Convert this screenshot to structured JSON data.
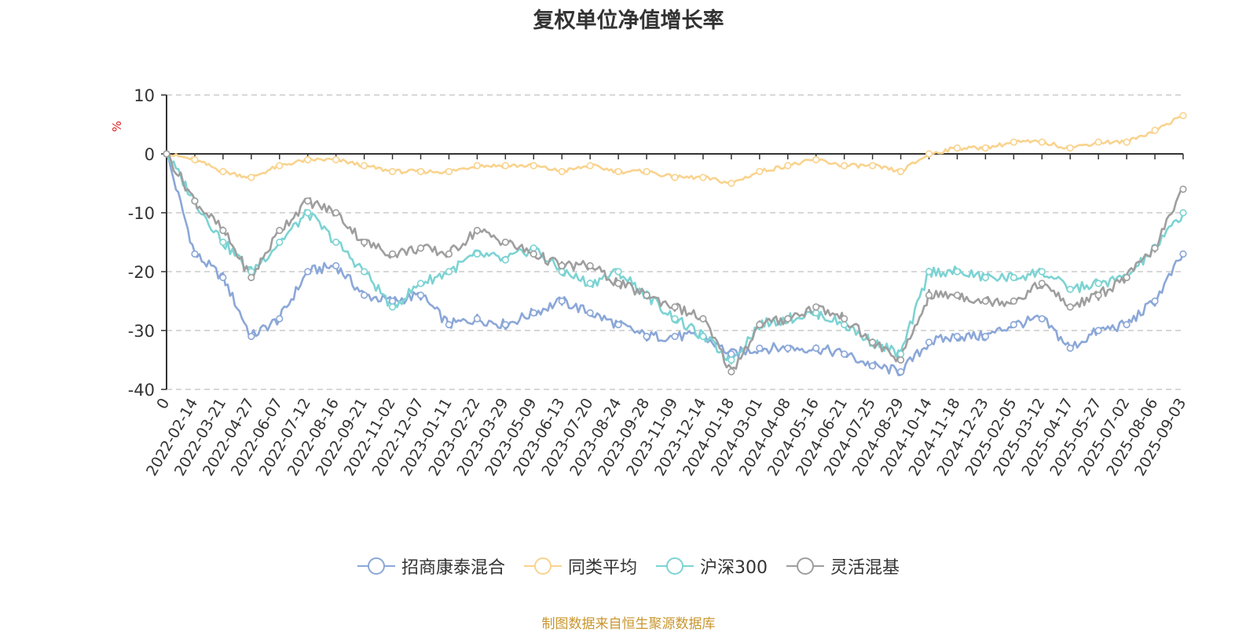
{
  "title": "复权单位净值增长率",
  "source_note": "制图数据来自恒生聚源数据库",
  "chart_data": {
    "type": "line",
    "title": "复权单位净值增长率",
    "ylabel": "%",
    "ylim": [
      -40,
      10
    ],
    "y_ticks": [
      10,
      0,
      -10,
      -20,
      -30,
      -40
    ],
    "grid": "horizontal dashed",
    "legend_position": "bottom",
    "x": [
      "0",
      "2022-02-14",
      "2022-03-21",
      "2022-04-27",
      "2022-06-07",
      "2022-07-12",
      "2022-08-16",
      "2022-09-21",
      "2022-11-02",
      "2022-12-07",
      "2023-01-11",
      "2023-02-22",
      "2023-03-29",
      "2023-05-09",
      "2023-06-13",
      "2023-07-20",
      "2023-08-24",
      "2023-09-28",
      "2023-11-09",
      "2023-12-14",
      "2024-01-18",
      "2024-03-01",
      "2024-04-08",
      "2024-05-16",
      "2024-06-21",
      "2024-07-25",
      "2024-08-29",
      "2024-10-14",
      "2024-11-18",
      "2024-12-23",
      "2025-02-05",
      "2025-03-12",
      "2025-04-17",
      "2025-05-27",
      "2025-07-02",
      "2025-08-06",
      "2025-09-03"
    ],
    "series": [
      {
        "name": "招商康泰混合",
        "color": "#8ba7d8",
        "values": [
          0,
          -17,
          -21,
          -31,
          -28,
          -20,
          -19,
          -24,
          -25,
          -24,
          -29,
          -28,
          -29,
          -27,
          -25,
          -27,
          -29,
          -31,
          -31,
          -31,
          -34,
          -33,
          -33,
          -33,
          -34,
          -36,
          -37,
          -32,
          -31,
          -31,
          -29,
          -28,
          -33,
          -30,
          -29,
          -25,
          -17
        ]
      },
      {
        "name": "同类平均",
        "color": "#f9d38e",
        "values": [
          0,
          -1,
          -3,
          -4,
          -2,
          -1,
          -1,
          -2,
          -3,
          -3,
          -3,
          -2,
          -2,
          -2,
          -3,
          -2,
          -3,
          -3,
          -4,
          -4,
          -5,
          -3,
          -2,
          -1,
          -2,
          -2,
          -3,
          0,
          1,
          1,
          2,
          2,
          1,
          2,
          2,
          4,
          6.5
        ]
      },
      {
        "name": "沪深300",
        "color": "#7dd3d3",
        "values": [
          0,
          -8,
          -15,
          -20,
          -15,
          -10,
          -15,
          -20,
          -26,
          -22,
          -20,
          -17,
          -18,
          -16,
          -20,
          -22,
          -20,
          -24,
          -28,
          -31,
          -35,
          -29,
          -28,
          -27,
          -29,
          -32,
          -34,
          -20,
          -20,
          -21,
          -21,
          -20,
          -23,
          -22,
          -21,
          -16,
          -10
        ]
      },
      {
        "name": "灵活混基",
        "color": "#9e9e9e",
        "values": [
          0,
          -8,
          -13,
          -21,
          -13,
          -8,
          -10,
          -15,
          -17,
          -16,
          -17,
          -13,
          -15,
          -17,
          -19,
          -19,
          -22,
          -24,
          -26,
          -28,
          -37,
          -29,
          -28,
          -26,
          -28,
          -32,
          -35,
          -24,
          -24,
          -25,
          -25,
          -22,
          -26,
          -24,
          -21,
          -16,
          -6
        ]
      }
    ]
  }
}
